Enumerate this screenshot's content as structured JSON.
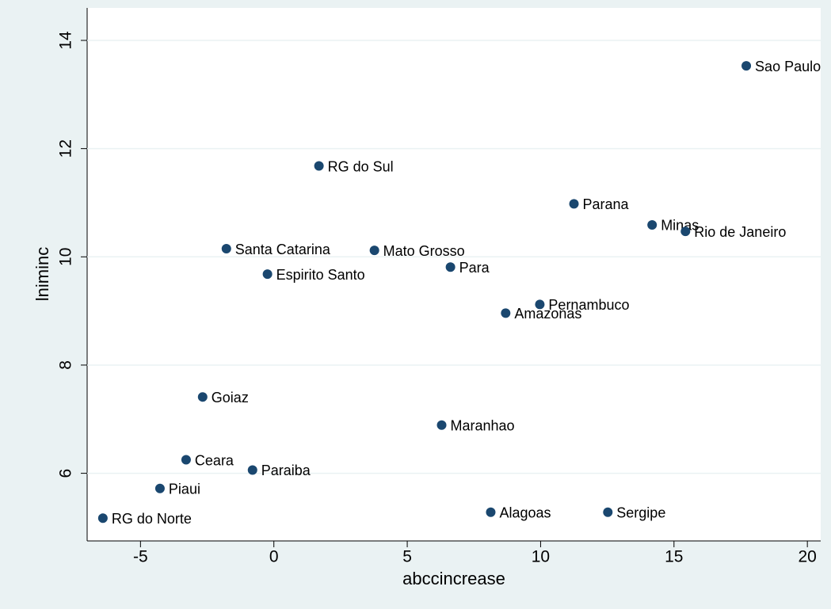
{
  "chart_data": {
    "type": "scatter",
    "x_label": "abccincrease",
    "y_label": "lniminc",
    "color": "#1a476f",
    "xlim": [
      -7,
      20.5
    ],
    "ylim": [
      4.75,
      14.6
    ],
    "xticks": [
      -5,
      0,
      5,
      10,
      15,
      20
    ],
    "yticks": [
      6,
      8,
      10,
      12,
      14
    ],
    "grid": true,
    "labels": [
      "Sao Paulo",
      "RG do Sul",
      "Parana",
      "Minas",
      "Rio de Janeiro",
      "Santa Catarina",
      "Mato Grosso",
      "Espirito Santo",
      "Para",
      "Pernambuco",
      "Amazonas",
      "Goiaz",
      "Maranhao",
      "Ceara",
      "Paraiba",
      "Piaui",
      "RG do Norte",
      "Alagoas",
      "Sergipe"
    ],
    "x": [
      17.71,
      1.69,
      11.25,
      14.18,
      15.43,
      -1.78,
      3.77,
      -0.24,
      6.62,
      9.97,
      8.69,
      -2.67,
      6.29,
      -3.29,
      -0.8,
      -4.27,
      -6.41,
      8.13,
      12.52
    ],
    "values": [
      13.53,
      11.68,
      10.98,
      10.59,
      10.47,
      10.15,
      10.12,
      9.68,
      9.81,
      9.12,
      8.96,
      7.41,
      6.89,
      6.25,
      6.06,
      5.72,
      5.17,
      5.28,
      5.28
    ]
  }
}
